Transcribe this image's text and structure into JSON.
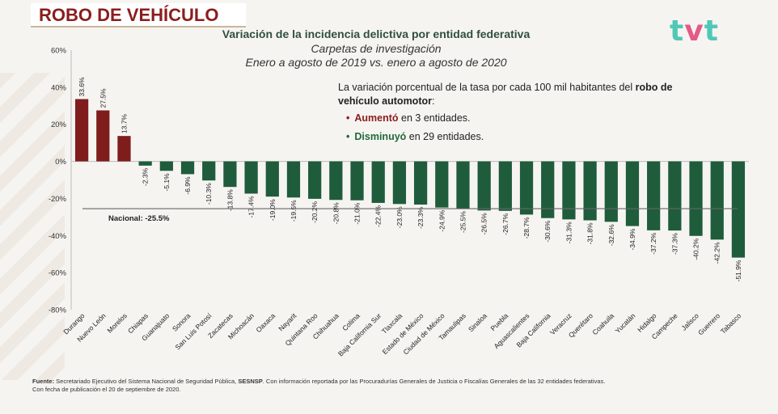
{
  "header": {
    "title": "ROBO DE VEHÍCULO"
  },
  "logo": {
    "t1": "t",
    "v": "v",
    "t2": "t"
  },
  "headline": "Variación de la incidencia delictiva por entidad federativa",
  "subtitle1": "Carpetas de investigación",
  "subtitle2": "Enero a agosto de 2019 vs. enero a agosto de 2020",
  "note": {
    "text": "La variación porcentual de la tasa por cada 100 mil habitantes del ",
    "bold": "robo de vehículo automotor",
    "suffix": ":"
  },
  "bullets": {
    "up": {
      "dot": "•",
      "keyword": "Aumentó",
      "rest": " en 3 entidades."
    },
    "down": {
      "dot": "•",
      "keyword": "Disminuyó",
      "rest": " en 29 entidades."
    }
  },
  "footer": {
    "label": "Fuente:",
    "text1": " Secretariado Ejecutivo del Sistema Nacional de Seguridad Pública, ",
    "bold": "SESNSP",
    "text2": ". Con información reportada por las Procuradurías Generales de Justicia o Fiscalías Generales de las 32 entidades federativas.",
    "line2": "Con fecha de publicación el 20 de septiembre de 2020."
  },
  "colors": {
    "increase": "#7f1d1d",
    "decrease": "#1f5c3c",
    "national_line": "#666666"
  },
  "chart_data": {
    "type": "bar",
    "title": "",
    "xlabel": "",
    "ylabel": "",
    "ylim": [
      -80,
      60
    ],
    "yticks": [
      -80,
      -60,
      -40,
      -20,
      0,
      20,
      40,
      60
    ],
    "ytick_labels": [
      "-80%",
      "-60%",
      "-40%",
      "-20%",
      "0%",
      "20%",
      "40%",
      "60%"
    ],
    "grid": false,
    "categories": [
      "Durango",
      "Nuevo León",
      "Morelos",
      "Chiapas",
      "Guanajuato",
      "Sonora",
      "San Luis Potosí",
      "Zacatecas",
      "Michoacán",
      "Oaxaca",
      "Nayarit",
      "Quintana Roo",
      "Chihuahua",
      "Colima",
      "Baja California Sur",
      "Tlaxcala",
      "Estado de México",
      "Ciudad de México",
      "Tamaulipas",
      "Sinaloa",
      "Puebla",
      "Aguascalientes",
      "Baja California",
      "Veracruz",
      "Querétaro",
      "Coahuila",
      "Yucatán",
      "Hidalgo",
      "Campeche",
      "Jalisco",
      "Guerrero",
      "Tabasco"
    ],
    "values": [
      33.6,
      27.5,
      13.7,
      -2.3,
      -5.1,
      -6.9,
      -10.3,
      -13.8,
      -17.4,
      -19.0,
      -19.5,
      -20.2,
      -20.8,
      -21.0,
      -22.4,
      -23.0,
      -23.3,
      -24.9,
      -25.5,
      -26.5,
      -26.7,
      -28.7,
      -30.6,
      -31.3,
      -31.8,
      -32.6,
      -34.9,
      -37.2,
      -37.3,
      -40.2,
      -42.2,
      -51.9
    ],
    "value_labels": [
      "33.6%",
      "27.5%",
      "13.7%",
      "-2.3%",
      "-5.1%",
      "-6.9%",
      "-10.3%",
      "-13.8%",
      "-17.4%",
      "-19.0%",
      "-19.5%",
      "-20.2%",
      "-20.8%",
      "-21.0%",
      "-22.4%",
      "-23.0%",
      "-23.3%",
      "-24.9%",
      "-25.5%",
      "-26.5%",
      "-26.7%",
      "-28.7%",
      "-30.6%",
      "-31.3%",
      "-31.8%",
      "-32.6%",
      "-34.9%",
      "-37.2%",
      "-37.3%",
      "-40.2%",
      "-42.2%",
      "-51.9%"
    ],
    "reference_line": {
      "value": -25.5,
      "label": "Nacional: -25.5%"
    }
  }
}
